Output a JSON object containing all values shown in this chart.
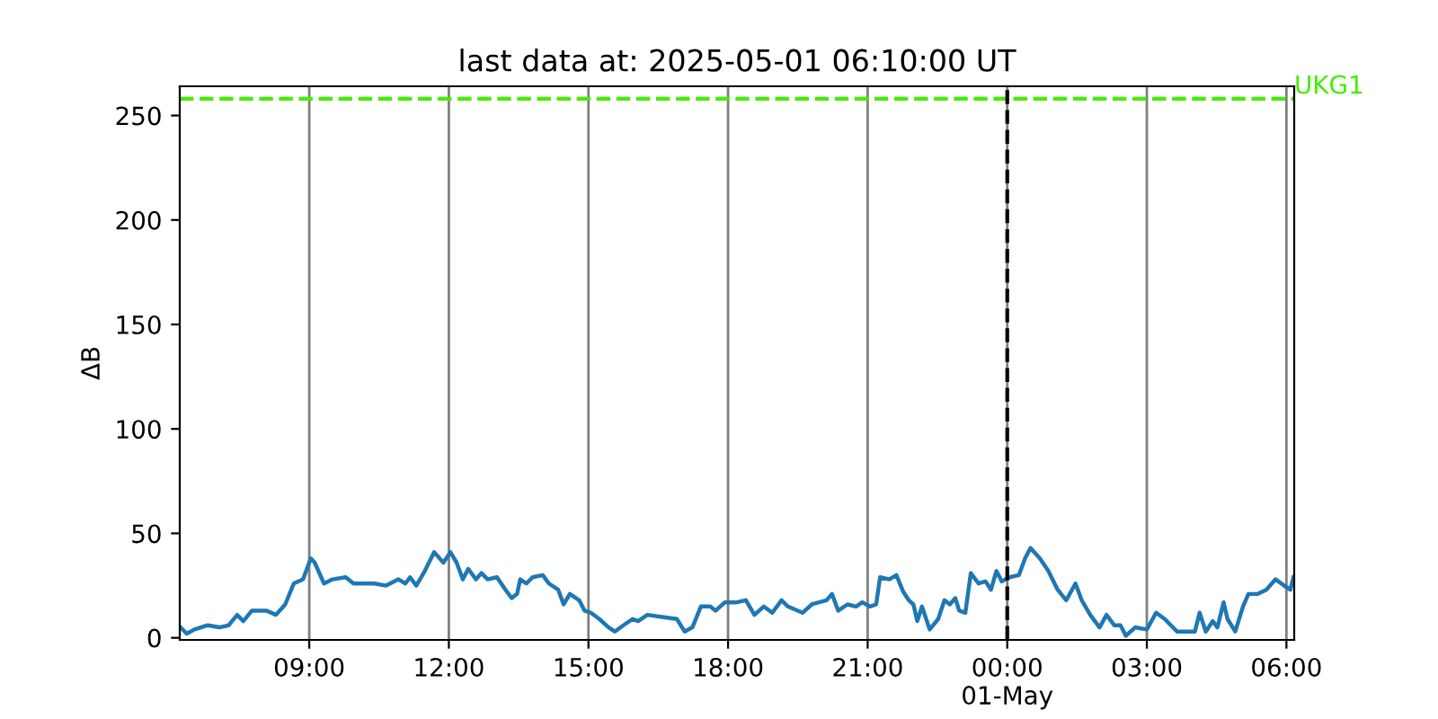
{
  "chart_data": {
    "type": "line",
    "title": "last data at: 2025-05-01 06:10:00 UT",
    "ylabel": "ΔB",
    "x": [
      "2025-04-30T06:14",
      "2025-04-30T06:22",
      "2025-04-30T06:32",
      "2025-04-30T06:49",
      "2025-04-30T07:04",
      "2025-04-30T07:16",
      "2025-04-30T07:27",
      "2025-04-30T07:35",
      "2025-04-30T07:46",
      "2025-04-30T08:05",
      "2025-04-30T08:17",
      "2025-04-30T08:29",
      "2025-04-30T08:40",
      "2025-04-30T08:52",
      "2025-04-30T09:02",
      "2025-04-30T09:07",
      "2025-04-30T09:19",
      "2025-04-30T09:30",
      "2025-04-30T09:47",
      "2025-04-30T09:57",
      "2025-04-30T10:24",
      "2025-04-30T10:39",
      "2025-04-30T10:55",
      "2025-04-30T11:04",
      "2025-04-30T11:10",
      "2025-04-30T11:18",
      "2025-04-30T11:29",
      "2025-04-30T11:41",
      "2025-04-30T11:53",
      "2025-04-30T12:02",
      "2025-04-30T12:10",
      "2025-04-30T12:18",
      "2025-04-30T12:25",
      "2025-04-30T12:35",
      "2025-04-30T12:42",
      "2025-04-30T12:50",
      "2025-04-30T13:02",
      "2025-04-30T13:13",
      "2025-04-30T13:21",
      "2025-04-30T13:28",
      "2025-04-30T13:32",
      "2025-04-30T13:40",
      "2025-04-30T13:48",
      "2025-04-30T14:01",
      "2025-04-30T14:09",
      "2025-04-30T14:21",
      "2025-04-30T14:28",
      "2025-04-30T14:36",
      "2025-04-30T14:48",
      "2025-04-30T14:55",
      "2025-04-30T15:03",
      "2025-04-30T15:14",
      "2025-04-30T15:26",
      "2025-04-30T15:34",
      "2025-04-30T15:45",
      "2025-04-30T15:57",
      "2025-04-30T16:04",
      "2025-04-30T16:16",
      "2025-04-30T16:35",
      "2025-04-30T16:54",
      "2025-04-30T17:04",
      "2025-04-30T17:14",
      "2025-04-30T17:25",
      "2025-04-30T17:37",
      "2025-04-30T17:44",
      "2025-04-30T17:56",
      "2025-04-30T18:11",
      "2025-04-30T18:23",
      "2025-04-30T18:34",
      "2025-04-30T18:46",
      "2025-04-30T18:57",
      "2025-04-30T19:09",
      "2025-04-30T19:17",
      "2025-04-30T19:36",
      "2025-04-30T19:48",
      "2025-04-30T20:07",
      "2025-04-30T20:14",
      "2025-04-30T20:22",
      "2025-04-30T20:34",
      "2025-04-30T20:45",
      "2025-04-30T20:53",
      "2025-04-30T21:03",
      "2025-04-30T21:11",
      "2025-04-30T21:16",
      "2025-04-30T21:28",
      "2025-04-30T21:37",
      "2025-04-30T21:46",
      "2025-04-30T21:53",
      "2025-04-30T21:59",
      "2025-04-30T22:04",
      "2025-04-30T22:10",
      "2025-04-30T22:20",
      "2025-04-30T22:31",
      "2025-04-30T22:39",
      "2025-04-30T22:46",
      "2025-04-30T22:53",
      "2025-04-30T22:58",
      "2025-04-30T23:06",
      "2025-04-30T23:13",
      "2025-04-30T23:23",
      "2025-04-30T23:32",
      "2025-04-30T23:39",
      "2025-04-30T23:46",
      "2025-04-30T23:53",
      "2025-05-01T00:03",
      "2025-05-01T00:15",
      "2025-05-01T00:23",
      "2025-05-01T00:30",
      "2025-05-01T00:42",
      "2025-05-01T00:53",
      "2025-05-01T01:05",
      "2025-05-01T01:16",
      "2025-05-01T01:28",
      "2025-05-01T01:36",
      "2025-05-01T01:47",
      "2025-05-01T01:59",
      "2025-05-01T02:08",
      "2025-05-01T02:18",
      "2025-05-01T02:26",
      "2025-05-01T02:33",
      "2025-05-01T02:45",
      "2025-05-01T03:00",
      "2025-05-01T03:12",
      "2025-05-01T03:23",
      "2025-05-01T03:39",
      "2025-05-01T04:02",
      "2025-05-01T04:08",
      "2025-05-01T04:16",
      "2025-05-01T04:25",
      "2025-05-01T04:31",
      "2025-05-01T04:39",
      "2025-05-01T04:44",
      "2025-05-01T04:54",
      "2025-05-01T05:04",
      "2025-05-01T05:11",
      "2025-05-01T05:23",
      "2025-05-01T05:34",
      "2025-05-01T05:46",
      "2025-05-01T05:57",
      "2025-05-01T06:05",
      "2025-05-01T06:09"
    ],
    "series": [
      {
        "color": "#1f77b4",
        "values": [
          5,
          2,
          4,
          6,
          5,
          6,
          11,
          8,
          13,
          13,
          11,
          16,
          26,
          28,
          38,
          36,
          26,
          28,
          29,
          26,
          26,
          25,
          28,
          26,
          29,
          25,
          32,
          41,
          36,
          41,
          36,
          28,
          33,
          28,
          31,
          28,
          29,
          23,
          19,
          21,
          28,
          26,
          29,
          30,
          26,
          23,
          16,
          21,
          18,
          13,
          12,
          9,
          5,
          3,
          6,
          9,
          8,
          11,
          10,
          9,
          3,
          5,
          15,
          15,
          13,
          17,
          17,
          18,
          11,
          15,
          12,
          18,
          15,
          12,
          16,
          18,
          21,
          13,
          16,
          15,
          17,
          15,
          16,
          29,
          28,
          30,
          22,
          18,
          16,
          8,
          15,
          4,
          9,
          18,
          16,
          19,
          13,
          12,
          31,
          26,
          27,
          23,
          32,
          27,
          29,
          30,
          38,
          43,
          38,
          32,
          23,
          18,
          26,
          18,
          11,
          5,
          11,
          6,
          6,
          1,
          5,
          4,
          12,
          9,
          3,
          3,
          12,
          3,
          8,
          5,
          17,
          9,
          3,
          15,
          21,
          21,
          23,
          28,
          25,
          23,
          29
        ]
      }
    ],
    "xlim": [
      "2025-04-30T06:13",
      "2025-05-01T06:10"
    ],
    "xticks": [
      {
        "value": "2025-04-30T09:00",
        "label": "09:00"
      },
      {
        "value": "2025-04-30T12:00",
        "label": "12:00"
      },
      {
        "value": "2025-04-30T15:00",
        "label": "15:00"
      },
      {
        "value": "2025-04-30T18:00",
        "label": "18:00"
      },
      {
        "value": "2025-04-30T21:00",
        "label": "21:00"
      },
      {
        "value": "2025-05-01T00:00",
        "label": "00:00\n01-May"
      },
      {
        "value": "2025-05-01T03:00",
        "label": "03:00"
      },
      {
        "value": "2025-05-01T06:00",
        "label": "06:00"
      }
    ],
    "ylim": [
      -1,
      264
    ],
    "yticks": [
      0,
      50,
      100,
      150,
      200,
      250
    ],
    "ref_lines": [
      {
        "axis": "y",
        "value": 258,
        "label": "UKG1",
        "color": "#44ee00",
        "line_style": "dashed"
      },
      {
        "axis": "x",
        "value": "2025-05-01T00:00",
        "color": "#000000",
        "line_style": "dashed"
      }
    ],
    "grid": "x"
  }
}
